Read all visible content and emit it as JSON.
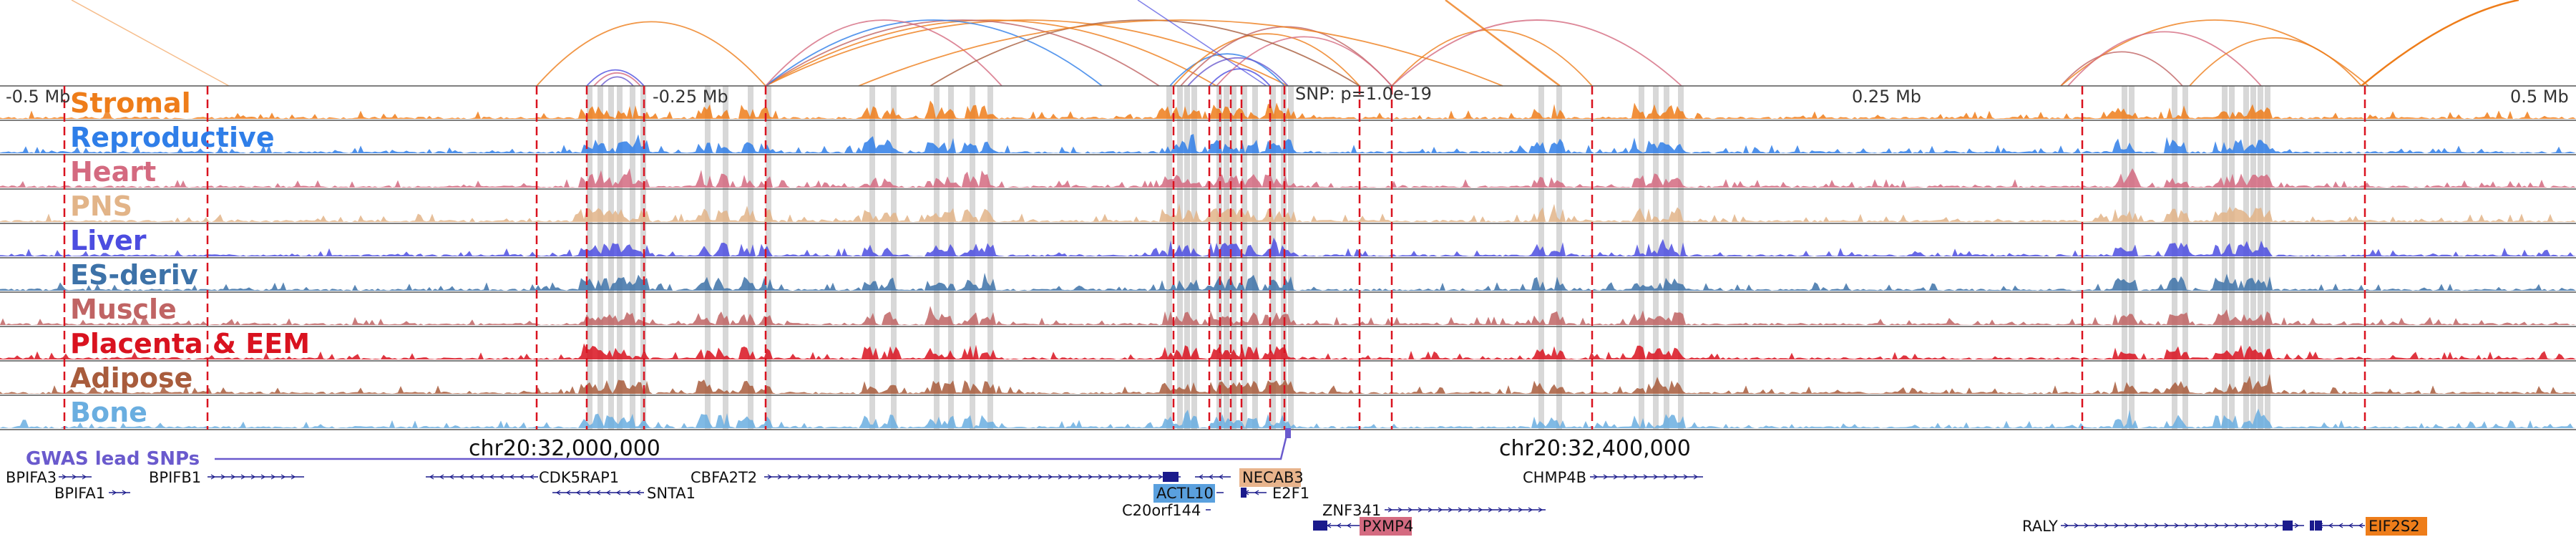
{
  "tracks": [
    {
      "name": "Stromal",
      "color": "#ee7d1a"
    },
    {
      "name": "Reproductive",
      "color": "#2f7ee8"
    },
    {
      "name": "Heart",
      "color": "#d46a80"
    },
    {
      "name": "PNS",
      "color": "#e2b488"
    },
    {
      "name": "Liver",
      "color": "#4c4de0"
    },
    {
      "name": "ES-deriv",
      "color": "#3d72a8"
    },
    {
      "name": "Muscle",
      "color": "#c06464"
    },
    {
      "name": "Placenta & EEM",
      "color": "#d9121f"
    },
    {
      "name": "Adipose",
      "color": "#a85c3c"
    },
    {
      "name": "Bone",
      "color": "#6aaee0"
    }
  ],
  "axis": {
    "ticks": [
      "-0.5 Mb",
      "-0.25 Mb",
      "0.25 Mb",
      "0.5 Mb"
    ],
    "snp_label": "SNP: p=1.0e-19",
    "chr_labels": [
      "chr20:32,000,000",
      "chr20:32,400,000"
    ]
  },
  "gwas_label": "GWAS lead SNPs",
  "genes": {
    "row1": [
      "BPIFA3",
      "BPIFB1",
      "CDK5RAP1",
      "CBFA2T2",
      "NECAB3",
      "CHMP4B"
    ],
    "row2": [
      "BPIFA1",
      "SNTA1",
      "ACTL10",
      "E2F1"
    ],
    "row3": [
      "C20orf144",
      "ZNF341"
    ],
    "row4": [
      "PXMP4",
      "RALY",
      "EIF2S2"
    ],
    "highlighted": {
      "ACTL10": "#5aa0de",
      "NECAB3": "#e8b48c",
      "PXMP4": "#d46a80",
      "EIF2S2": "#ee7d1a"
    }
  },
  "colors": {
    "red_line": "#d9121f",
    "grey_band": "#d0d0d0",
    "axis_line": "#444444"
  }
}
